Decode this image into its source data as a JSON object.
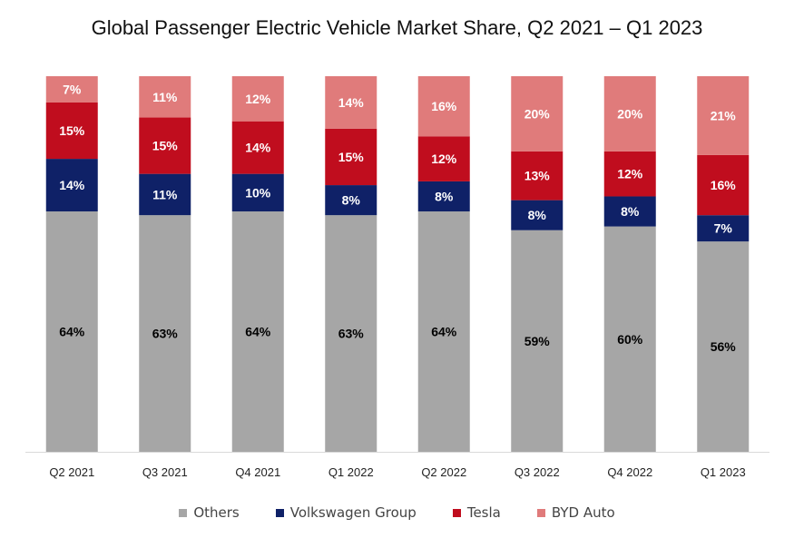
{
  "chart_data": {
    "type": "bar",
    "stacked": true,
    "title": "Global Passenger Electric Vehicle Market Share, Q2 2021 – Q1 2023",
    "categories": [
      "Q2 2021",
      "Q3 2021",
      "Q4 2021",
      "Q1 2022",
      "Q2 2022",
      "Q3 2022",
      "Q4 2022",
      "Q1 2023"
    ],
    "ylim": [
      0,
      100
    ],
    "grid": false,
    "legend_position": "bottom",
    "series": [
      {
        "name": "Others",
        "color": "#a6a6a6",
        "label_color": "#000000",
        "values": [
          64,
          63,
          64,
          63,
          64,
          59,
          60,
          56
        ]
      },
      {
        "name": "Volkswagen Group",
        "color": "#0f2167",
        "label_color": "#ffffff",
        "values": [
          14,
          11,
          10,
          8,
          8,
          8,
          8,
          7
        ]
      },
      {
        "name": "Tesla",
        "color": "#c00d1e",
        "label_color": "#ffffff",
        "values": [
          15,
          15,
          14,
          15,
          12,
          13,
          12,
          16
        ]
      },
      {
        "name": "BYD Auto",
        "color": "#e07b7b",
        "label_color": "#ffffff",
        "values": [
          7,
          11,
          12,
          14,
          16,
          20,
          20,
          21
        ]
      }
    ],
    "data_labels": [
      [
        "64%",
        "63%",
        "64%",
        "63%",
        "64%",
        "59%",
        "60%",
        "56%"
      ],
      [
        "14%",
        "11%",
        "10%",
        "8%",
        "8%",
        "8%",
        "8%",
        "7%"
      ],
      [
        "15%",
        "15%",
        "14%",
        "15%",
        "12%",
        "13%",
        "12%",
        "16%"
      ],
      [
        "7%",
        "11%",
        "12%",
        "14%",
        "16%",
        "20%",
        "20%",
        "21%"
      ]
    ]
  }
}
